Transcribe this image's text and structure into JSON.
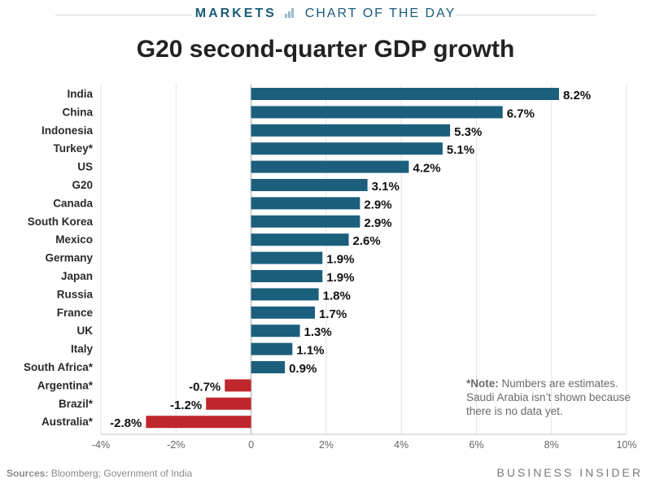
{
  "header": {
    "brand": "MARKETS",
    "section": "CHART OF THE DAY",
    "icon": "bar-chart-icon"
  },
  "colors": {
    "positive": "#1c5f7d",
    "negative": "#c0272d",
    "grid": "#e3e3e3",
    "text": "#222222"
  },
  "chart_data": {
    "type": "bar",
    "orientation": "horizontal",
    "title": "G20 second-quarter GDP growth",
    "xlabel": "",
    "ylabel": "",
    "categories": [
      "India",
      "China",
      "Indonesia",
      "Turkey*",
      "US",
      "G20",
      "Canada",
      "South Korea",
      "Mexico",
      "Germany",
      "Japan",
      "Russia",
      "France",
      "UK",
      "Italy",
      "South Africa*",
      "Argentina*",
      "Brazil*",
      "Australia*"
    ],
    "values": [
      8.2,
      6.7,
      5.3,
      5.1,
      4.2,
      3.1,
      2.9,
      2.9,
      2.6,
      1.9,
      1.9,
      1.8,
      1.7,
      1.3,
      1.1,
      0.9,
      -0.7,
      -1.2,
      -2.8
    ],
    "value_labels": [
      "8.2%",
      "6.7%",
      "5.3%",
      "5.1%",
      "4.2%",
      "3.1%",
      "2.9%",
      "2.9%",
      "2.6%",
      "1.9%",
      "1.9%",
      "1.8%",
      "1.7%",
      "1.3%",
      "1.1%",
      "0.9%",
      "-0.7%",
      "-1.2%",
      "-2.8%"
    ],
    "xlim": [
      -4,
      10
    ],
    "xticks": [
      -4,
      -2,
      0,
      2,
      4,
      6,
      8,
      10
    ],
    "xtick_labels": [
      "-4%",
      "-2%",
      "0",
      "2%",
      "4%",
      "6%",
      "8%",
      "10%"
    ],
    "grid": true,
    "legend": "none"
  },
  "note": {
    "label": "*Note:",
    "text": " Numbers are estimates. Saudi Arabia isn’t shown because there is no data yet."
  },
  "footer": {
    "sources_label": "Sources:",
    "sources_text": " Bloomberg; Government of India",
    "brand": "BUSINESS INSIDER"
  }
}
